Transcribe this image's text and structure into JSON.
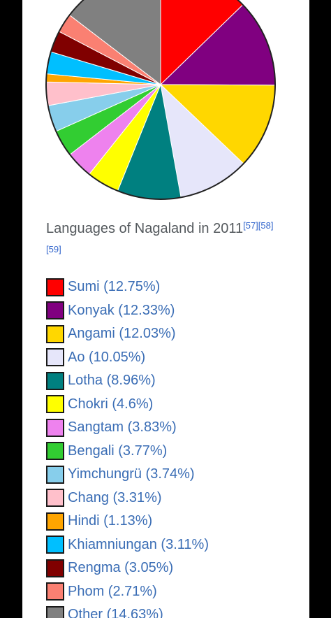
{
  "chart_data": {
    "type": "pie",
    "title": "Languages of Nagaland in 2011",
    "refs": "[57][58][59]",
    "slices": [
      {
        "label": "Sumi (12.75%)",
        "value": 12.75,
        "color": "#ff0000"
      },
      {
        "label": "Konyak (12.33%)",
        "value": 12.33,
        "color": "#800080"
      },
      {
        "label": "Angami (12.03%)",
        "value": 12.03,
        "color": "#ffd700"
      },
      {
        "label": "Ao (10.05%)",
        "value": 10.05,
        "color": "#e6e6fa"
      },
      {
        "label": "Lotha (8.96%)",
        "value": 8.96,
        "color": "#008080"
      },
      {
        "label": "Chokri (4.6%)",
        "value": 4.6,
        "color": "#ffff00"
      },
      {
        "label": "Sangtam (3.83%)",
        "value": 3.83,
        "color": "#ee82ee"
      },
      {
        "label": "Bengali (3.77%)",
        "value": 3.77,
        "color": "#32cd32"
      },
      {
        "label": "Yimchungrü (3.74%)",
        "value": 3.74,
        "color": "#87ceeb"
      },
      {
        "label": "Chang (3.31%)",
        "value": 3.31,
        "color": "#ffc0cb"
      },
      {
        "label": "Hindi (1.13%)",
        "value": 1.13,
        "color": "#ffa500"
      },
      {
        "label": "Khiamniungan (3.11%)",
        "value": 3.11,
        "color": "#00bfff"
      },
      {
        "label": "Rengma (3.05%)",
        "value": 3.05,
        "color": "#800000"
      },
      {
        "label": "Phom (2.71%)",
        "value": 2.71,
        "color": "#fa8072"
      },
      {
        "label": "Other (14.63%)",
        "value": 14.63,
        "color": "#808080"
      }
    ]
  }
}
